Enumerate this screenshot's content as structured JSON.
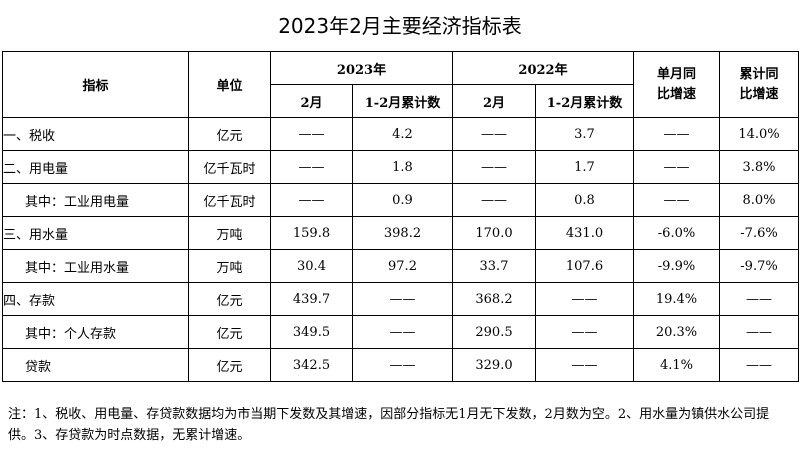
{
  "title": "2023年2月主要经济指标表",
  "headers": {
    "indicator": "指标",
    "unit": "单位",
    "year_2023": "2023年",
    "year_2022": "2022年",
    "feb": "2月",
    "jan_feb": "1-2月累计数",
    "monthly_yoy": "单月同\n比增速",
    "cumulative_yoy": "累计同\n比增速"
  },
  "rows": [
    {
      "label": "一、税收",
      "unit": "亿元",
      "v2023_feb": "——",
      "v2023_cum": "4.2",
      "v2022_feb": "——",
      "v2022_cum": "3.7",
      "monthly": "——",
      "cumulative": "14.0%"
    },
    {
      "label": "二、用电量",
      "unit": "亿千瓦时",
      "v2023_feb": "——",
      "v2023_cum": "1.8",
      "v2022_feb": "——",
      "v2022_cum": "1.7",
      "monthly": "——",
      "cumulative": "3.8%"
    },
    {
      "label": "其中：工业用电量",
      "unit": "亿千瓦时",
      "v2023_feb": "——",
      "v2023_cum": "0.9",
      "v2022_feb": "——",
      "v2022_cum": "0.8",
      "monthly": "——",
      "cumulative": "8.0%"
    },
    {
      "label": "三、用水量",
      "unit": "万吨",
      "v2023_feb": "159.8",
      "v2023_cum": "398.2",
      "v2022_feb": "170.0",
      "v2022_cum": "431.0",
      "monthly": "-6.0%",
      "cumulative": "-7.6%"
    },
    {
      "label": "其中：工业用水量",
      "unit": "万吨",
      "v2023_feb": "30.4",
      "v2023_cum": "97.2",
      "v2022_feb": "33.7",
      "v2022_cum": "107.6",
      "monthly": "-9.9%",
      "cumulative": "-9.7%"
    },
    {
      "label": "四、存款",
      "unit": "亿元",
      "v2023_feb": "439.7",
      "v2023_cum": "——",
      "v2022_feb": "368.2",
      "v2022_cum": "——",
      "monthly": "19.4%",
      "cumulative": "——"
    },
    {
      "label": "其中：个人存款",
      "unit": "亿元",
      "v2023_feb": "349.5",
      "v2023_cum": "——",
      "v2022_feb": "290.5",
      "v2022_cum": "——",
      "monthly": "20.3%",
      "cumulative": "——"
    },
    {
      "label": "贷款",
      "unit": "亿元",
      "v2023_feb": "342.5",
      "v2023_cum": "——",
      "v2022_feb": "329.0",
      "v2022_cum": "——",
      "monthly": "4.1%",
      "cumulative": "——"
    }
  ],
  "note": "注：1、税收、用电量、存贷款数据均为市当期下发数及其增速，因部分指标无1月无下发数，2月数为空。2、用水量为镇供水公司提供。3、存贷款为时点数据，无累计增速。"
}
